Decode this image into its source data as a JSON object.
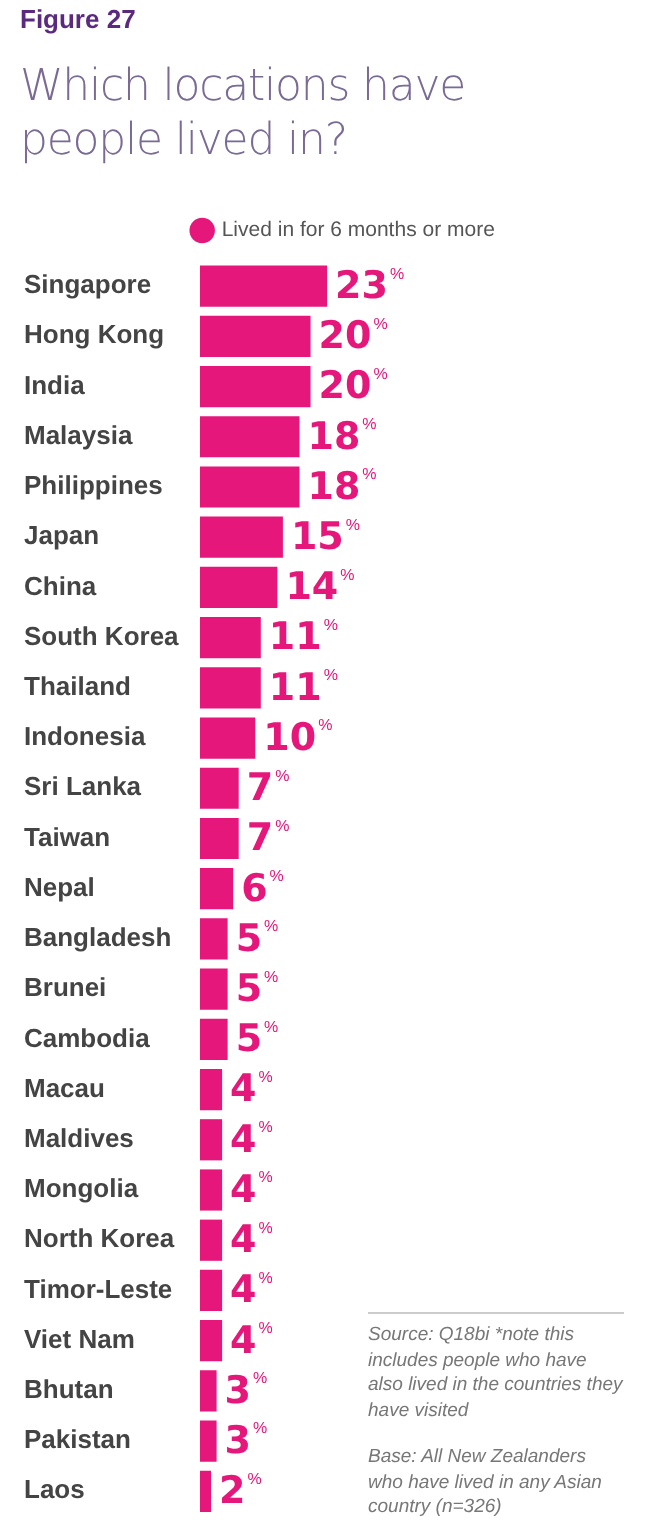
{
  "chart_data": {
    "type": "bar",
    "orientation": "horizontal",
    "title": "Which locations have people lived in?",
    "categories": [
      "Singapore",
      "Hong Kong",
      "India",
      "Malaysia",
      "Philippines",
      "Japan",
      "China",
      "South Korea",
      "Thailand",
      "Indonesia",
      "Sri Lanka",
      "Taiwan",
      "Nepal",
      "Bangladesh",
      "Brunei",
      "Cambodia",
      "Macau",
      "Maldives",
      "Mongolia",
      "North Korea",
      "Timor-Leste",
      "Viet Nam",
      "Bhutan",
      "Pakistan",
      "Laos"
    ],
    "series": [
      {
        "name": "Lived in for 6 months or more",
        "color": "#e5177b",
        "values": [
          23,
          20,
          20,
          18,
          18,
          15,
          14,
          11,
          11,
          10,
          7,
          7,
          6,
          5,
          5,
          5,
          4,
          4,
          4,
          4,
          4,
          4,
          3,
          3,
          2
        ],
        "value_labels": [
          "23%",
          "20%",
          "20%",
          "18%",
          "18%",
          "15%",
          "14%",
          "11%",
          "11%",
          "10%",
          "7%",
          "7%",
          "6%",
          "5%",
          "5%",
          "5%",
          "4%",
          "4%",
          "4%",
          "4%",
          "4%",
          "4%",
          "3%",
          "3%",
          "2%"
        ]
      }
    ],
    "legend": "top",
    "grid": false,
    "tick_labels": "y",
    "annotations": [
      "Figure 27",
      "Source: Q18bi *note this includes people who have also lived in the countries they have visited",
      "Base: All New Zealanders who have lived in any Asian country (n=326)"
    ]
  }
}
